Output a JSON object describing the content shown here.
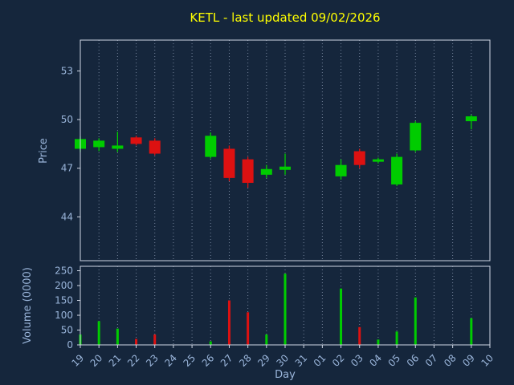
{
  "colors": {
    "background": "#15263c",
    "frame": "#cfd6e4",
    "axis_text": "#9ab5da",
    "grid": "#75849c",
    "up": "#00cc00",
    "down": "#dd1111",
    "title": "#ffff00"
  },
  "chart_data": {
    "type": "candlestick",
    "title": "KETL - last updated 09/02/2026",
    "xlabel": "Day",
    "price_ylabel": "Price",
    "volume_ylabel": "Volume (0000)",
    "x_categories": [
      "19",
      "20",
      "21",
      "22",
      "23",
      "24",
      "25",
      "26",
      "27",
      "28",
      "29",
      "30",
      "31",
      "01",
      "02",
      "03",
      "04",
      "05",
      "06",
      "07",
      "08",
      "09",
      "10"
    ],
    "price_ticks": [
      44,
      47,
      50,
      53
    ],
    "price_ylim": [
      41.3,
      54.9
    ],
    "volume_ticks": [
      0,
      50,
      100,
      150,
      200,
      250
    ],
    "volume_ylim": [
      0,
      265
    ],
    "grid": "vertical-dotted",
    "legend": "none",
    "candles": [
      {
        "day": "19",
        "open": 48.2,
        "high": 48.95,
        "low": 48.0,
        "close": 48.8,
        "volume": 35
      },
      {
        "day": "20",
        "open": 48.3,
        "high": 48.85,
        "low": 48.05,
        "close": 48.7,
        "volume": 80
      },
      {
        "day": "21",
        "open": 48.2,
        "high": 49.25,
        "low": 48.0,
        "close": 48.4,
        "volume": 55
      },
      {
        "day": "22",
        "open": 48.9,
        "high": 49.0,
        "low": 48.4,
        "close": 48.5,
        "volume": 20
      },
      {
        "day": "23",
        "open": 48.7,
        "high": 48.85,
        "low": 47.8,
        "close": 47.9,
        "volume": 35
      },
      {
        "day": "26",
        "open": 47.7,
        "high": 49.2,
        "low": 47.6,
        "close": 49.0,
        "volume": 12
      },
      {
        "day": "27",
        "open": 48.2,
        "high": 48.4,
        "low": 46.2,
        "close": 46.4,
        "volume": 150
      },
      {
        "day": "28",
        "open": 47.55,
        "high": 47.7,
        "low": 45.8,
        "close": 46.1,
        "volume": 110
      },
      {
        "day": "29",
        "open": 46.6,
        "high": 47.2,
        "low": 46.4,
        "close": 46.95,
        "volume": 35
      },
      {
        "day": "30",
        "open": 46.9,
        "high": 47.9,
        "low": 46.6,
        "close": 47.1,
        "volume": 240
      },
      {
        "day": "02",
        "open": 46.5,
        "high": 47.55,
        "low": 46.3,
        "close": 47.2,
        "volume": 190
      },
      {
        "day": "03",
        "open": 48.05,
        "high": 48.2,
        "low": 47.0,
        "close": 47.2,
        "volume": 60
      },
      {
        "day": "04",
        "open": 47.4,
        "high": 47.65,
        "low": 47.3,
        "close": 47.55,
        "volume": 18
      },
      {
        "day": "05",
        "open": 46.0,
        "high": 47.9,
        "low": 45.9,
        "close": 47.7,
        "volume": 45
      },
      {
        "day": "06",
        "open": 48.1,
        "high": 49.9,
        "low": 48.0,
        "close": 49.8,
        "volume": 160
      },
      {
        "day": "09",
        "open": 49.9,
        "high": 50.3,
        "low": 49.4,
        "close": 50.2,
        "volume": 90
      }
    ]
  }
}
